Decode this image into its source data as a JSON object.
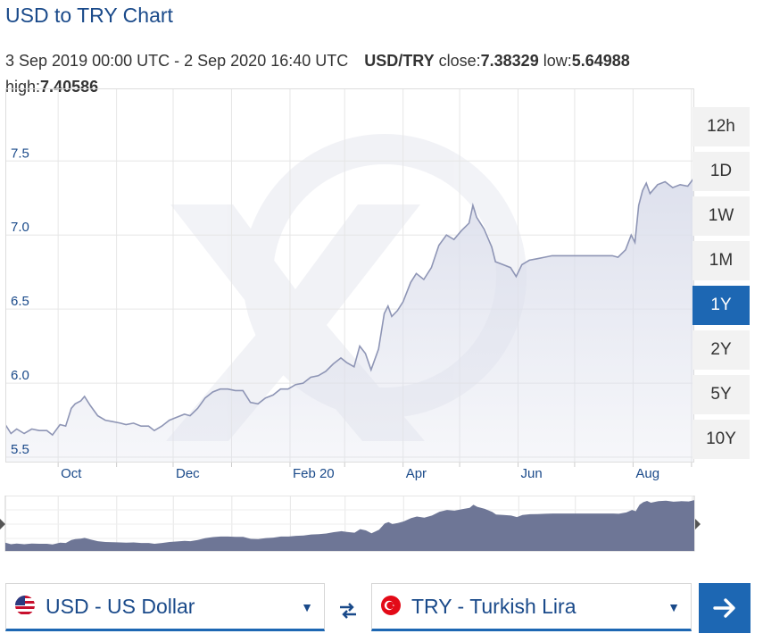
{
  "header": {
    "title": "USD to TRY Chart",
    "range_text": "3 Sep 2019 00:00 UTC - 2 Sep 2020 16:40 UTC",
    "pair": "USD/TRY",
    "close_label": "close:",
    "close_value": "7.38329",
    "low_label": "low:",
    "low_value": "5.64988",
    "high_label": "high:",
    "high_value": "7.40586"
  },
  "time_ranges": [
    "12h",
    "1D",
    "1W",
    "1M",
    "1Y",
    "2Y",
    "5Y",
    "10Y"
  ],
  "active_range": "1Y",
  "converter": {
    "from_label": "USD - US Dollar",
    "to_label": "TRY - Turkish Lira",
    "caret": "▼"
  },
  "colors": {
    "accent": "#1d67b3",
    "line": "#8e95b5",
    "area": "#dcdfec",
    "navigator_fill": "#6e7696"
  },
  "chart_data": {
    "type": "area",
    "title": "",
    "xlabel": "",
    "ylabel": "",
    "ylim": [
      5.47,
      7.99
    ],
    "y_ticks": [
      5.5,
      6.0,
      6.5,
      7.0,
      7.5
    ],
    "y_tick_labels": [
      "5.5",
      "6.0",
      "6.5",
      "7.0",
      "7.5"
    ],
    "x_ticks": [
      {
        "label": "Oct",
        "date": "2019-10-01"
      },
      {
        "label": "Dec",
        "date": "2019-12-01"
      },
      {
        "label": "Feb 20",
        "date": "2020-02-01"
      },
      {
        "label": "Apr",
        "date": "2020-04-01"
      },
      {
        "label": "Jun",
        "date": "2020-06-01"
      },
      {
        "label": "Aug",
        "date": "2020-08-01"
      }
    ],
    "x_range": [
      "2019-09-03",
      "2020-09-02"
    ],
    "grid": true,
    "series": [
      {
        "points": [
          [
            "2019-09-03",
            5.72
          ],
          [
            "2019-09-06",
            5.66
          ],
          [
            "2019-09-09",
            5.69
          ],
          [
            "2019-09-13",
            5.66
          ],
          [
            "2019-09-17",
            5.69
          ],
          [
            "2019-09-21",
            5.68
          ],
          [
            "2019-09-25",
            5.68
          ],
          [
            "2019-09-28",
            5.65
          ],
          [
            "2019-10-02",
            5.72
          ],
          [
            "2019-10-05",
            5.71
          ],
          [
            "2019-10-08",
            5.83
          ],
          [
            "2019-10-10",
            5.86
          ],
          [
            "2019-10-13",
            5.88
          ],
          [
            "2019-10-15",
            5.91
          ],
          [
            "2019-10-18",
            5.85
          ],
          [
            "2019-10-22",
            5.78
          ],
          [
            "2019-10-26",
            5.75
          ],
          [
            "2019-10-30",
            5.74
          ],
          [
            "2019-11-03",
            5.73
          ],
          [
            "2019-11-06",
            5.72
          ],
          [
            "2019-11-10",
            5.73
          ],
          [
            "2019-11-14",
            5.71
          ],
          [
            "2019-11-18",
            5.71
          ],
          [
            "2019-11-21",
            5.68
          ],
          [
            "2019-11-25",
            5.71
          ],
          [
            "2019-11-29",
            5.75
          ],
          [
            "2019-12-03",
            5.77
          ],
          [
            "2019-12-07",
            5.79
          ],
          [
            "2019-12-10",
            5.78
          ],
          [
            "2019-12-14",
            5.83
          ],
          [
            "2019-12-18",
            5.9
          ],
          [
            "2019-12-22",
            5.94
          ],
          [
            "2019-12-26",
            5.96
          ],
          [
            "2019-12-30",
            5.96
          ],
          [
            "2020-01-03",
            5.95
          ],
          [
            "2020-01-07",
            5.95
          ],
          [
            "2020-01-11",
            5.87
          ],
          [
            "2020-01-15",
            5.86
          ],
          [
            "2020-01-19",
            5.9
          ],
          [
            "2020-01-23",
            5.92
          ],
          [
            "2020-01-27",
            5.96
          ],
          [
            "2020-01-31",
            5.96
          ],
          [
            "2020-02-04",
            5.99
          ],
          [
            "2020-02-08",
            6.0
          ],
          [
            "2020-02-12",
            6.04
          ],
          [
            "2020-02-16",
            6.05
          ],
          [
            "2020-02-20",
            6.08
          ],
          [
            "2020-02-24",
            6.13
          ],
          [
            "2020-02-28",
            6.17
          ],
          [
            "2020-03-02",
            6.14
          ],
          [
            "2020-03-06",
            6.11
          ],
          [
            "2020-03-09",
            6.25
          ],
          [
            "2020-03-12",
            6.2
          ],
          [
            "2020-03-15",
            6.09
          ],
          [
            "2020-03-19",
            6.23
          ],
          [
            "2020-03-22",
            6.47
          ],
          [
            "2020-03-24",
            6.52
          ],
          [
            "2020-03-26",
            6.45
          ],
          [
            "2020-03-29",
            6.49
          ],
          [
            "2020-04-01",
            6.55
          ],
          [
            "2020-04-05",
            6.68
          ],
          [
            "2020-04-08",
            6.74
          ],
          [
            "2020-04-12",
            6.7
          ],
          [
            "2020-04-16",
            6.78
          ],
          [
            "2020-04-20",
            6.93
          ],
          [
            "2020-04-24",
            7.0
          ],
          [
            "2020-04-28",
            6.97
          ],
          [
            "2020-05-02",
            7.03
          ],
          [
            "2020-05-06",
            7.08
          ],
          [
            "2020-05-08",
            7.2
          ],
          [
            "2020-05-10",
            7.12
          ],
          [
            "2020-05-14",
            7.04
          ],
          [
            "2020-05-18",
            6.92
          ],
          [
            "2020-05-20",
            6.82
          ],
          [
            "2020-05-24",
            6.8
          ],
          [
            "2020-05-28",
            6.78
          ],
          [
            "2020-05-31",
            6.72
          ],
          [
            "2020-06-03",
            6.8
          ],
          [
            "2020-06-07",
            6.83
          ],
          [
            "2020-06-11",
            6.84
          ],
          [
            "2020-06-15",
            6.85
          ],
          [
            "2020-06-19",
            6.86
          ],
          [
            "2020-06-23",
            6.86
          ],
          [
            "2020-06-27",
            6.86
          ],
          [
            "2020-07-01",
            6.86
          ],
          [
            "2020-07-05",
            6.86
          ],
          [
            "2020-07-09",
            6.86
          ],
          [
            "2020-07-13",
            6.86
          ],
          [
            "2020-07-17",
            6.86
          ],
          [
            "2020-07-21",
            6.86
          ],
          [
            "2020-07-24",
            6.85
          ],
          [
            "2020-07-28",
            6.9
          ],
          [
            "2020-07-31",
            7.0
          ],
          [
            "2020-08-02",
            6.95
          ],
          [
            "2020-08-04",
            7.2
          ],
          [
            "2020-08-06",
            7.3
          ],
          [
            "2020-08-08",
            7.35
          ],
          [
            "2020-08-10",
            7.28
          ],
          [
            "2020-08-14",
            7.34
          ],
          [
            "2020-08-18",
            7.36
          ],
          [
            "2020-08-22",
            7.32
          ],
          [
            "2020-08-26",
            7.34
          ],
          [
            "2020-08-30",
            7.33
          ],
          [
            "2020-09-02",
            7.38
          ]
        ]
      }
    ]
  }
}
